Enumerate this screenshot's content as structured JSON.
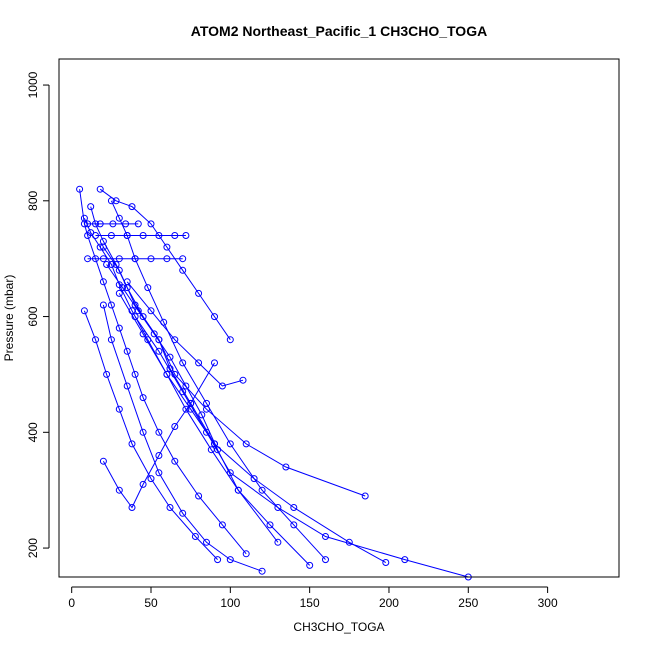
{
  "chart_data": {
    "type": "line",
    "title": "ATOM2 Northeast_Pacific_1 CH3CHO_TOGA",
    "xlabel": "CH3CHO_TOGA",
    "ylabel": "Pressure (mbar)",
    "xlim": [
      -8,
      345
    ],
    "ylim": [
      1045,
      150
    ],
    "y_reversed": true,
    "x_ticks": [
      0,
      50,
      100,
      150,
      200,
      250,
      300
    ],
    "y_ticks": [
      200,
      400,
      600,
      800,
      1000
    ],
    "grid": false,
    "legend": "none",
    "marker": "open-circle",
    "colors": {
      "series": "#0000ff",
      "axes": "#000000",
      "background": "#ffffff"
    },
    "series": [
      {
        "x": [
          5,
          8,
          10,
          15,
          20,
          25,
          30,
          35,
          40,
          45,
          55,
          65,
          80,
          95,
          110
        ],
        "y": [
          820,
          760,
          740,
          700,
          660,
          620,
          580,
          540,
          500,
          460,
          400,
          350,
          290,
          240,
          190
        ]
      },
      {
        "x": [
          12,
          15,
          20,
          28,
          35,
          45,
          55,
          62,
          75,
          90,
          105,
          130
        ],
        "y": [
          790,
          760,
          730,
          690,
          650,
          600,
          560,
          510,
          450,
          380,
          300,
          210
        ]
      },
      {
        "x": [
          25,
          30,
          35,
          40,
          48,
          58,
          70,
          85,
          100,
          120,
          140,
          160
        ],
        "y": [
          800,
          770,
          740,
          700,
          650,
          590,
          520,
          450,
          380,
          300,
          240,
          180
        ]
      },
      {
        "x": [
          8,
          12,
          18,
          25,
          30,
          38,
          48,
          60,
          72,
          88,
          105,
          125,
          150
        ],
        "y": [
          770,
          745,
          720,
          690,
          655,
          610,
          560,
          500,
          440,
          370,
          300,
          240,
          170
        ]
      },
      {
        "x": [
          10,
          20,
          30,
          40,
          50,
          60,
          70
        ],
        "y": [
          700,
          700,
          700,
          700,
          700,
          700,
          700
        ]
      },
      {
        "x": [
          15,
          25,
          35,
          45,
          55,
          65,
          72
        ],
        "y": [
          740,
          740,
          740,
          740,
          740,
          740,
          740
        ]
      },
      {
        "x": [
          10,
          18,
          26,
          34,
          42
        ],
        "y": [
          760,
          760,
          760,
          760,
          760
        ]
      },
      {
        "x": [
          20,
          30,
          40,
          55,
          65,
          85,
          110,
          135,
          185
        ],
        "y": [
          720,
          680,
          620,
          560,
          500,
          440,
          380,
          340,
          290
        ]
      },
      {
        "x": [
          30,
          45,
          60,
          75,
          90,
          115,
          140,
          175,
          198
        ],
        "y": [
          640,
          570,
          500,
          440,
          380,
          320,
          270,
          210,
          175
        ]
      },
      {
        "x": [
          40,
          55,
          70,
          85,
          100,
          130,
          160,
          210,
          250
        ],
        "y": [
          600,
          540,
          470,
          400,
          330,
          270,
          220,
          180,
          150
        ]
      },
      {
        "x": [
          20,
          25,
          35,
          45,
          55,
          70,
          85,
          100,
          120
        ],
        "y": [
          620,
          560,
          480,
          400,
          330,
          260,
          210,
          180,
          160
        ]
      },
      {
        "x": [
          8,
          15,
          22,
          30,
          38,
          50,
          62,
          78,
          92
        ],
        "y": [
          610,
          560,
          500,
          440,
          380,
          320,
          270,
          220,
          180
        ]
      },
      {
        "x": [
          35,
          50,
          65,
          80,
          95,
          108
        ],
        "y": [
          660,
          610,
          560,
          520,
          480,
          490
        ]
      },
      {
        "x": [
          22,
          32,
          42,
          52,
          62,
          72,
          82,
          92
        ],
        "y": [
          690,
          650,
          610,
          570,
          530,
          480,
          430,
          370
        ]
      },
      {
        "x": [
          18,
          28,
          38,
          50,
          60,
          70,
          80,
          90,
          100
        ],
        "y": [
          820,
          800,
          790,
          760,
          720,
          680,
          640,
          600,
          560
        ]
      },
      {
        "x": [
          20,
          30,
          38,
          45,
          55,
          65,
          75,
          90
        ],
        "y": [
          350,
          300,
          270,
          310,
          360,
          410,
          450,
          520
        ]
      }
    ]
  }
}
